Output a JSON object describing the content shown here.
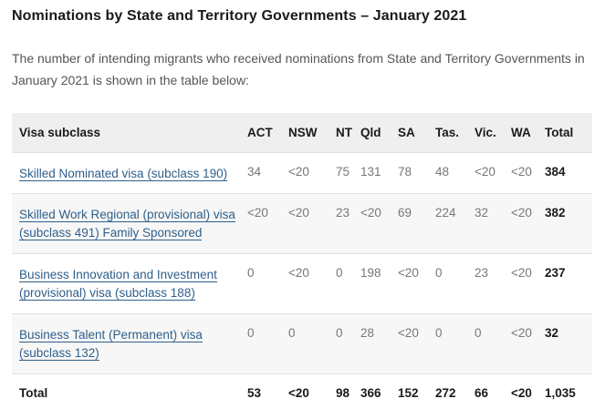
{
  "heading": "Nominations by State and Territory Governments – January 2021",
  "intro": "The number of intending migrants who received nominations from State and Territory Governments in January 2021 is shown in the table below:",
  "table": {
    "headers": [
      "Visa subclass",
      "ACT",
      "NSW",
      "NT",
      "Qld",
      "SA",
      "Tas.",
      "Vic.",
      "WA",
      "Total"
    ],
    "rows": [
      {
        "name": "Skilled Nominated visa (subclass 190)",
        "values": [
          "34",
          "<20",
          "75",
          "131",
          "78",
          "48",
          "<20",
          "<20"
        ],
        "total": "384"
      },
      {
        "name": "Skilled Work Regional (provisional) visa (subclass 491) Family Sponsored",
        "values": [
          "<20",
          "<20",
          "23",
          "<20",
          "69",
          "224",
          "32",
          "<20"
        ],
        "total": "382"
      },
      {
        "name": "Business Innovation and Investment (provisional) visa (subclass 188)",
        "values": [
          "0",
          "<20",
          "0",
          "198",
          "<20",
          "0",
          "23",
          "<20"
        ],
        "total": "237"
      },
      {
        "name": "Business Talent (Permanent) visa (subclass 132)",
        "values": [
          "0",
          "0",
          "0",
          "28",
          "<20",
          "0",
          "0",
          "<20"
        ],
        "total": "32"
      }
    ],
    "footer": {
      "label": "Total",
      "values": [
        "53",
        "<20",
        "98",
        "366",
        "152",
        "272",
        "66",
        "<20"
      ],
      "total": "1,035"
    }
  }
}
